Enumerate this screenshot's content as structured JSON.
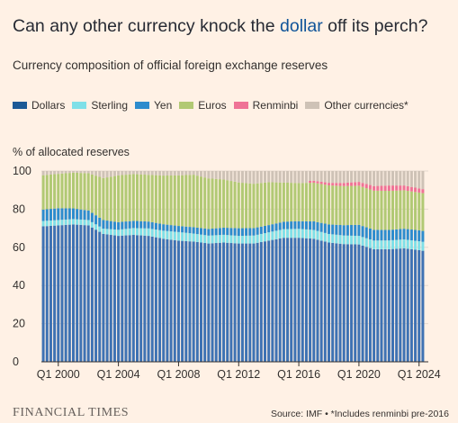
{
  "header": {
    "title_pre": "Can any other currency knock the ",
    "title_highlight": "dollar",
    "title_post": " off its perch?",
    "subtitle": "Currency composition of official foreign exchange reserves"
  },
  "legend": [
    {
      "label": "Dollars",
      "color": "#1b5a96"
    },
    {
      "label": "Sterling",
      "color": "#7fe0e8"
    },
    {
      "label": "Yen",
      "color": "#2d8ccd"
    },
    {
      "label": "Euros",
      "color": "#b1c974"
    },
    {
      "label": "Renminbi",
      "color": "#ef7396"
    },
    {
      "label": "Other currencies*",
      "color": "#cec2b6"
    }
  ],
  "footer": {
    "brand": "FINANCIAL TIMES",
    "source": "Source: IMF • *Includes renminbi pre-2016"
  },
  "chart_data": {
    "type": "bar",
    "stacked": true,
    "frequency": "quarterly",
    "ylabel": "% of allocated reserves",
    "ylim": [
      0,
      100
    ],
    "yticks": [
      0,
      20,
      40,
      60,
      80,
      100
    ],
    "xticks": [
      "Q1 2000",
      "Q1 2004",
      "Q1 2008",
      "Q1 2012",
      "Q1 2016",
      "Q1 2020",
      "Q1 2024"
    ],
    "period_start": "Q1 1999",
    "period_end": "Q2 2024",
    "series": [
      {
        "name": "Dollars",
        "color": "#3e72b3",
        "knots": [
          [
            "Q1 1999",
            71.0
          ],
          [
            "Q1 2000",
            71.5
          ],
          [
            "Q1 2001",
            72.0
          ],
          [
            "Q1 2002",
            71.5
          ],
          [
            "Q1 2003",
            67.0
          ],
          [
            "Q1 2004",
            66.0
          ],
          [
            "Q1 2005",
            66.5
          ],
          [
            "Q1 2006",
            66.0
          ],
          [
            "Q1 2007",
            64.5
          ],
          [
            "Q1 2008",
            63.5
          ],
          [
            "Q1 2009",
            63.0
          ],
          [
            "Q1 2010",
            62.0
          ],
          [
            "Q1 2011",
            62.5
          ],
          [
            "Q1 2012",
            62.0
          ],
          [
            "Q1 2013",
            62.0
          ],
          [
            "Q1 2014",
            63.5
          ],
          [
            "Q1 2015",
            65.0
          ],
          [
            "Q1 2016",
            65.0
          ],
          [
            "Q1 2017",
            64.5
          ],
          [
            "Q1 2018",
            62.5
          ],
          [
            "Q1 2019",
            61.7
          ],
          [
            "Q1 2020",
            61.5
          ],
          [
            "Q1 2021",
            59.0
          ],
          [
            "Q1 2022",
            59.0
          ],
          [
            "Q1 2023",
            59.5
          ],
          [
            "Q1 2024",
            58.5
          ],
          [
            "Q2 2024",
            58.2
          ]
        ]
      },
      {
        "name": "Sterling",
        "color": "#7fe0e8",
        "knots": [
          [
            "Q1 1999",
            2.8
          ],
          [
            "Q1 2003",
            2.8
          ],
          [
            "Q1 2005",
            3.6
          ],
          [
            "Q1 2008",
            4.5
          ],
          [
            "Q1 2009",
            4.2
          ],
          [
            "Q1 2012",
            4.0
          ],
          [
            "Q1 2016",
            4.7
          ],
          [
            "Q1 2018",
            4.5
          ],
          [
            "Q1 2020",
            4.5
          ],
          [
            "Q1 2024",
            4.7
          ],
          [
            "Q2 2024",
            4.7
          ]
        ]
      },
      {
        "name": "Yen",
        "color": "#2d8ccd",
        "knots": [
          [
            "Q1 1999",
            6.0
          ],
          [
            "Q1 2000",
            6.2
          ],
          [
            "Q1 2002",
            5.0
          ],
          [
            "Q1 2004",
            4.0
          ],
          [
            "Q1 2008",
            3.2
          ],
          [
            "Q1 2010",
            3.5
          ],
          [
            "Q1 2012",
            4.0
          ],
          [
            "Q1 2014",
            3.8
          ],
          [
            "Q1 2016",
            4.0
          ],
          [
            "Q1 2018",
            5.0
          ],
          [
            "Q1 2020",
            5.8
          ],
          [
            "Q1 2022",
            5.5
          ],
          [
            "Q1 2024",
            5.7
          ],
          [
            "Q2 2024",
            5.7
          ]
        ]
      },
      {
        "name": "Euros",
        "color": "#b1c974",
        "knots": [
          [
            "Q1 1999",
            18.0
          ],
          [
            "Q1 2000",
            18.0
          ],
          [
            "Q1 2002",
            19.5
          ],
          [
            "Q1 2004",
            24.5
          ],
          [
            "Q1 2006",
            24.5
          ],
          [
            "Q1 2008",
            26.5
          ],
          [
            "Q1 2009",
            27.5
          ],
          [
            "Q1 2010",
            26.5
          ],
          [
            "Q1 2012",
            24.0
          ],
          [
            "Q1 2014",
            22.5
          ],
          [
            "Q1 2015",
            20.5
          ],
          [
            "Q1 2016",
            20.0
          ],
          [
            "Q1 2018",
            20.5
          ],
          [
            "Q1 2020",
            20.5
          ],
          [
            "Q1 2022",
            20.5
          ],
          [
            "Q1 2024",
            19.8
          ],
          [
            "Q2 2024",
            19.8
          ]
        ]
      },
      {
        "name": "Renminbi",
        "color": "#ef7396",
        "knots": [
          [
            "Q4 2016",
            1.0
          ],
          [
            "Q1 2018",
            1.3
          ],
          [
            "Q1 2020",
            2.0
          ],
          [
            "Q1 2022",
            2.8
          ],
          [
            "Q1 2024",
            2.2
          ],
          [
            "Q2 2024",
            2.1
          ]
        ]
      },
      {
        "name": "Other currencies*",
        "color": "#cec2b6",
        "remainder": true
      }
    ]
  }
}
